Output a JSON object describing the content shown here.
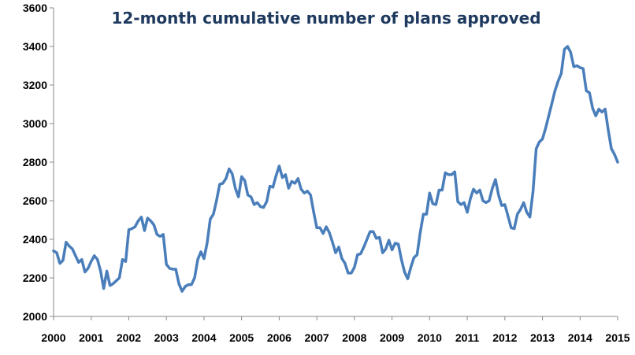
{
  "chart_data": {
    "type": "line",
    "title": "12-month cumulative number of plans approved",
    "xlabel": "",
    "ylabel": "",
    "xlim": [
      2000,
      2015
    ],
    "ylim": [
      2000,
      3600
    ],
    "y_ticks": [
      2000,
      2200,
      2400,
      2600,
      2800,
      3000,
      3200,
      3400,
      3600
    ],
    "x_ticks": [
      "2000",
      "2001",
      "2002",
      "2003",
      "2004",
      "2005",
      "2006",
      "2007",
      "2008",
      "2009",
      "2010",
      "2011",
      "2012",
      "2013",
      "2014",
      "2015"
    ],
    "grid": false,
    "legend": "none",
    "colors": {
      "line": "#4a7ebb",
      "title": "#1f3a5f",
      "axis": "#888888"
    },
    "series": [
      {
        "name": "",
        "x_start": "2000-01",
        "frequency": "monthly",
        "values": [
          2340,
          2330,
          2275,
          2290,
          2385,
          2365,
          2350,
          2315,
          2280,
          2295,
          2230,
          2250,
          2285,
          2315,
          2295,
          2235,
          2145,
          2235,
          2160,
          2170,
          2185,
          2200,
          2295,
          2285,
          2450,
          2455,
          2465,
          2495,
          2515,
          2445,
          2510,
          2495,
          2475,
          2425,
          2415,
          2425,
          2270,
          2250,
          2245,
          2245,
          2170,
          2130,
          2155,
          2165,
          2165,
          2200,
          2295,
          2335,
          2300,
          2380,
          2505,
          2530,
          2600,
          2685,
          2690,
          2715,
          2765,
          2740,
          2665,
          2620,
          2725,
          2705,
          2630,
          2620,
          2580,
          2590,
          2570,
          2565,
          2595,
          2675,
          2670,
          2730,
          2780,
          2720,
          2735,
          2665,
          2700,
          2690,
          2715,
          2660,
          2640,
          2650,
          2630,
          2540,
          2460,
          2460,
          2430,
          2465,
          2435,
          2385,
          2330,
          2360,
          2300,
          2275,
          2225,
          2225,
          2255,
          2320,
          2325,
          2360,
          2400,
          2440,
          2440,
          2405,
          2410,
          2330,
          2350,
          2395,
          2345,
          2380,
          2375,
          2295,
          2230,
          2195,
          2255,
          2305,
          2320,
          2435,
          2530,
          2530,
          2640,
          2585,
          2580,
          2655,
          2655,
          2745,
          2735,
          2735,
          2750,
          2595,
          2580,
          2590,
          2540,
          2610,
          2660,
          2640,
          2655,
          2600,
          2590,
          2600,
          2665,
          2710,
          2630,
          2575,
          2580,
          2520,
          2460,
          2455,
          2530,
          2555,
          2590,
          2540,
          2515,
          2650,
          2870,
          2905,
          2920,
          2975,
          3040,
          3105,
          3170,
          3220,
          3260,
          3385,
          3400,
          3370,
          3295,
          3300,
          3290,
          3285,
          3170,
          3160,
          3080,
          3040,
          3075,
          3060,
          3075,
          2965,
          2870,
          2840,
          2800
        ]
      }
    ]
  }
}
